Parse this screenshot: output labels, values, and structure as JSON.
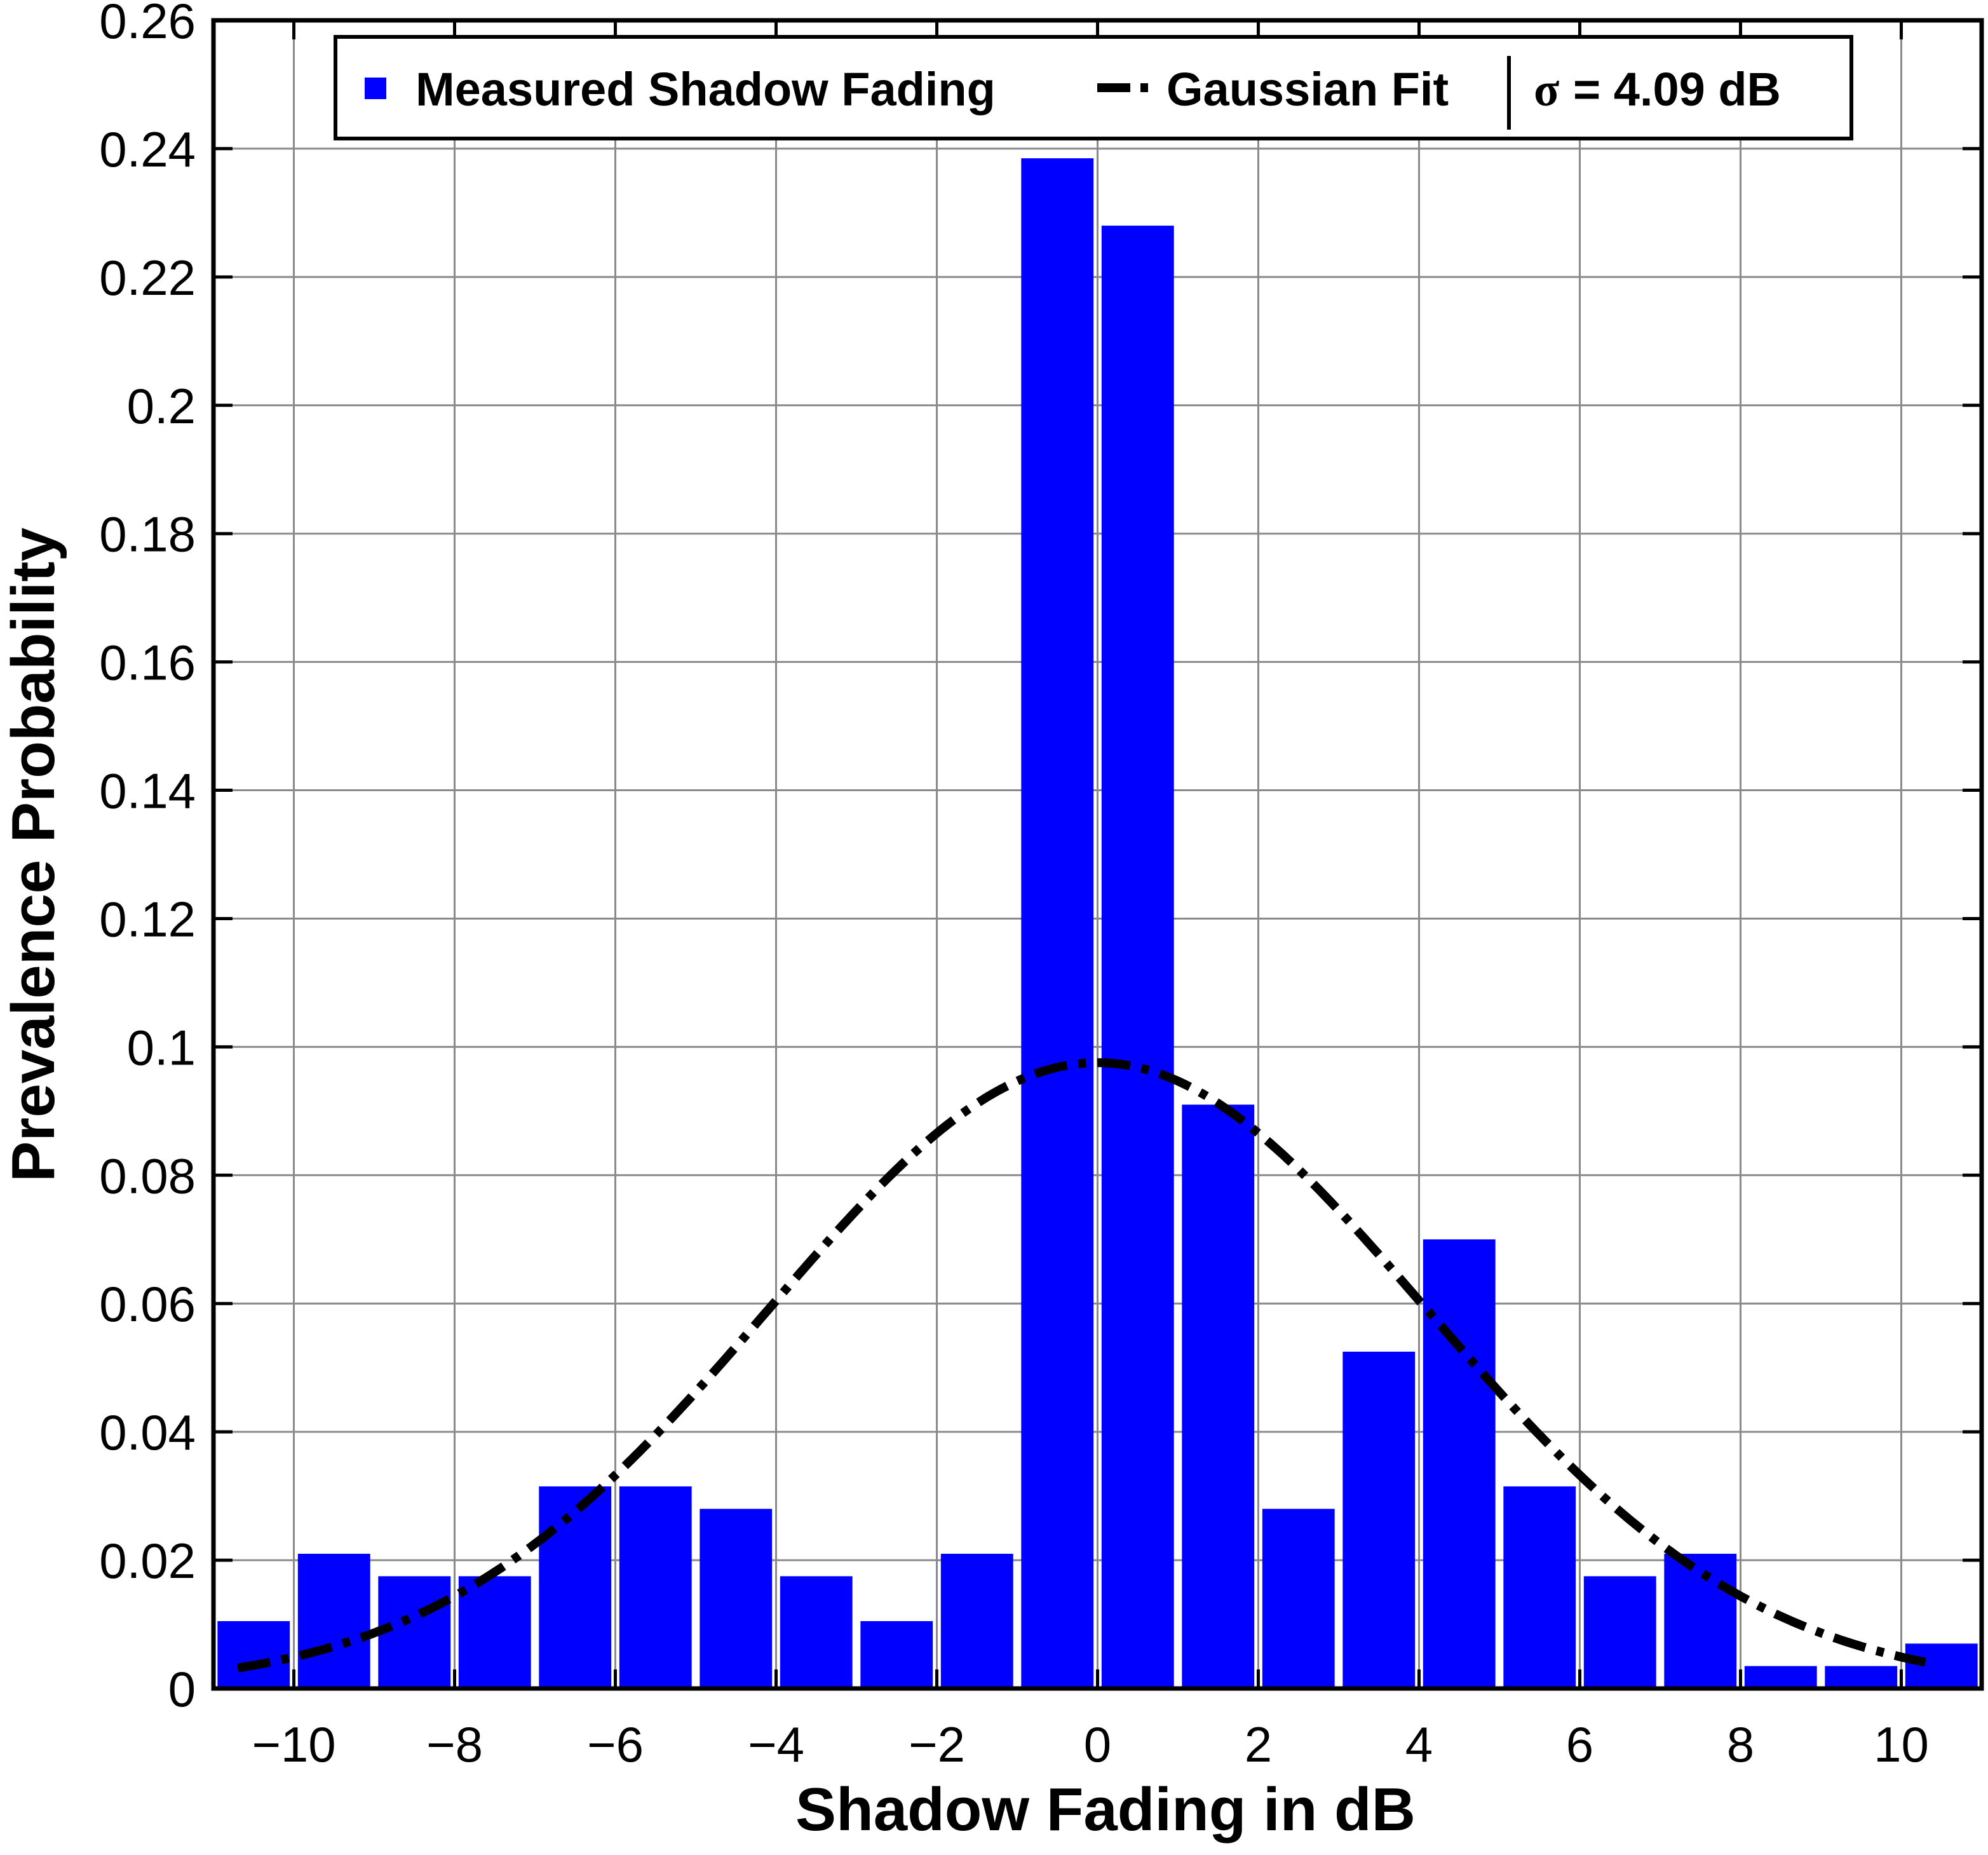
{
  "chart_data": {
    "type": "bar",
    "xlabel": "Shadow Fading in dB",
    "ylabel": "Prevalence Probability",
    "xlim": [
      -11,
      11
    ],
    "ylim": [
      0,
      0.26
    ],
    "xticks": [
      "−10",
      "−8",
      "−6",
      "−4",
      "−2",
      "0",
      "2",
      "4",
      "6",
      "8",
      "10"
    ],
    "yticks": [
      "0",
      "0.02",
      "0.04",
      "0.06",
      "0.08",
      "0.1",
      "0.12",
      "0.14",
      "0.16",
      "0.18",
      "0.2",
      "0.22",
      "0.24",
      "0.26"
    ],
    "grid": true,
    "legend": {
      "placement": "top",
      "bar_label": "Measured Shadow Fading",
      "line_label": "Gaussian Fit",
      "sigma_symbol": "σ",
      "sigma_text": "= 4.09 dB"
    },
    "bars": {
      "name": "Measured Shadow Fading",
      "color": "#0000ff",
      "x": [
        -10.5,
        -9.5,
        -8.5,
        -7.5,
        -6.5,
        -5.5,
        -4.5,
        -3.5,
        -2.5,
        -1.5,
        -0.5,
        0.5,
        1.5,
        2.5,
        3.5,
        4.5,
        5.5,
        6.5,
        7.5,
        8.5,
        9.5,
        10.5
      ],
      "values": [
        0.0105,
        0.021,
        0.0175,
        0.0175,
        0.0315,
        0.0315,
        0.028,
        0.0175,
        0.0105,
        0.021,
        0.2385,
        0.228,
        0.091,
        0.028,
        0.0525,
        0.07,
        0.0315,
        0.0175,
        0.021,
        0.0035,
        0.0035,
        0.007
      ]
    },
    "fit": {
      "name": "Gaussian Fit",
      "color": "#000000",
      "style": "dash-dot",
      "mean": 0,
      "sigma": 4.09,
      "x_range": [
        -10.7,
        10.3
      ]
    }
  }
}
